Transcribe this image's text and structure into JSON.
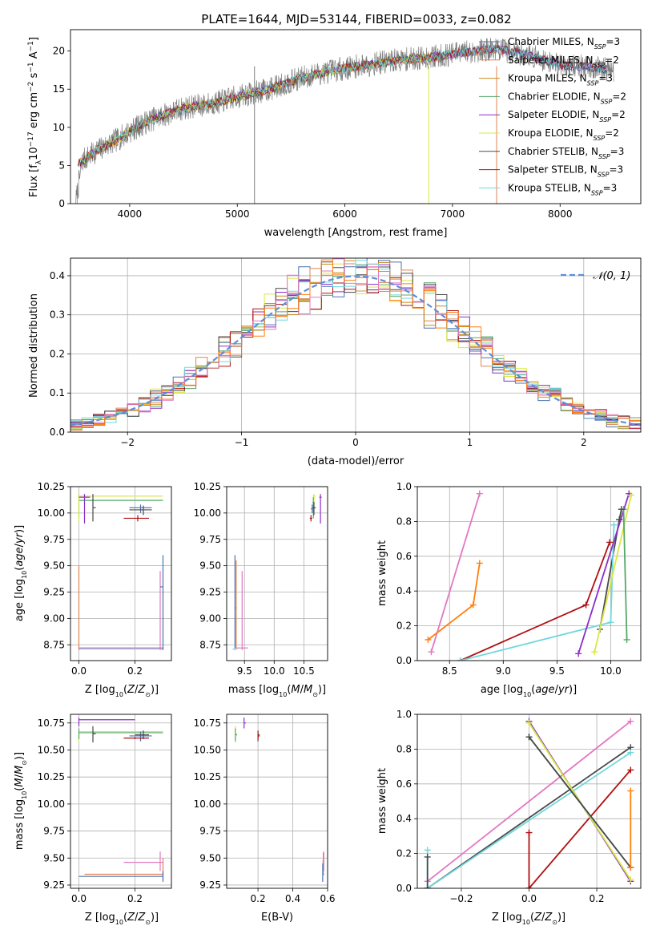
{
  "figure": {
    "title": "PLATE=1644, MJD=53144, FIBERID=0033, z=0.082"
  },
  "colors": {
    "Chabrier MILES": "#4c72b0",
    "Salpeter MILES": "#dd8452",
    "Kroupa MILES": "#c98a1a",
    "Chabrier ELODIE": "#55a868",
    "Salpeter ELODIE": "#8c2ec9",
    "Kroupa ELODIE": "#d8e840",
    "Chabrier STELIB": "#4a4a4a",
    "Salpeter STELIB": "#b01010",
    "Kroupa STELIB": "#6fd8de",
    "data": "#7f7f7f",
    "gauss": "#5b8fd9",
    "pinkB": "#e377c2",
    "orangeB": "#ff7f0e"
  },
  "legend": {
    "models": [
      "Chabrier MILES, N_SSP=3",
      "Salpeter MILES, N_SSP=2",
      "Kroupa MILES, N_SSP=3",
      "Chabrier ELODIE, N_SSP=2",
      "Salpeter ELODIE, N_SSP=2",
      "Kroupa ELODIE, N_SSP=2",
      "Chabrier STELIB, N_SSP=3",
      "Salpeter STELIB, N_SSP=3",
      "Kroupa STELIB, N_SSP=3"
    ],
    "gauss": "𝒩(0, 1)"
  },
  "chart_data": [
    {
      "id": "spectrum",
      "type": "line",
      "xlabel": "wavelength [Angstrom, rest frame]",
      "ylabel": "Flux [f_λ 10^-17 erg cm^-2 s^-1 A^-1]",
      "xlim": [
        3450,
        8750
      ],
      "ylim": [
        0,
        22.8
      ],
      "xticks": [
        4000,
        5000,
        6000,
        7000,
        8000
      ],
      "yticks": [
        0,
        5,
        10,
        15,
        20
      ],
      "grid": false,
      "legend_position": "top-right",
      "continuum": [
        [
          3500,
          5
        ],
        [
          3700,
          7
        ],
        [
          3900,
          8.5
        ],
        [
          4000,
          9.5
        ],
        [
          4200,
          11
        ],
        [
          4500,
          12.5
        ],
        [
          4800,
          13.2
        ],
        [
          5000,
          14
        ],
        [
          5300,
          15
        ],
        [
          5600,
          16.5
        ],
        [
          5900,
          17.5
        ],
        [
          6200,
          18.2
        ],
        [
          6500,
          18.8
        ],
        [
          6800,
          19.2
        ],
        [
          7100,
          19.8
        ],
        [
          7400,
          20.3
        ],
        [
          7700,
          19.5
        ],
        [
          8000,
          18.2
        ],
        [
          8300,
          17.8
        ],
        [
          8500,
          17.5
        ]
      ]
    },
    {
      "id": "residuals",
      "type": "histogram",
      "xlabel": "(data-model)/error",
      "ylabel": "Normed distribution",
      "xlim": [
        -2.5,
        2.5
      ],
      "ylim": [
        0,
        0.445
      ],
      "xticks": [
        -2,
        -1,
        0,
        1,
        2
      ],
      "yticks": [
        0.0,
        0.1,
        0.2,
        0.3,
        0.4
      ],
      "grid": true,
      "legend_position": "top-right",
      "bin_width": 0.1,
      "gaussian": {
        "mean": 0,
        "sigma": 1
      }
    },
    {
      "id": "age_vs_Z",
      "type": "scatter",
      "xlabel": "Z [log10(Z/Z⊙)]",
      "ylabel": "age [log10(age/yr)]",
      "xlim": [
        -0.03,
        0.33
      ],
      "ylim": [
        8.6,
        10.25
      ],
      "xticks": [
        0.0,
        0.2
      ],
      "yticks": [
        8.75,
        9.0,
        9.25,
        9.5,
        9.75,
        10.0,
        10.25
      ],
      "grid": true
    },
    {
      "id": "age_vs_mass",
      "type": "scatter",
      "xlabel": "mass [log10(M/M⊙)]",
      "xlim": [
        9.2,
        10.9
      ],
      "ylim": [
        8.6,
        10.25
      ],
      "xticks": [
        9.5,
        10.0,
        10.5
      ],
      "yticks": [
        8.75,
        9.0,
        9.25,
        9.5,
        9.75,
        10.0,
        10.25
      ],
      "grid": true
    },
    {
      "id": "weight_vs_age",
      "type": "line",
      "xlabel": "age [log10(age/yr)]",
      "ylabel": "mass weight",
      "xlim": [
        8.2,
        10.28
      ],
      "ylim": [
        0,
        1.0
      ],
      "xticks": [
        8.5,
        9.0,
        9.5,
        10.0
      ],
      "yticks": [
        0.0,
        0.2,
        0.4,
        0.6,
        0.8,
        1.0
      ],
      "grid": true
    },
    {
      "id": "mass_vs_Z",
      "type": "scatter",
      "xlabel": "Z [log10(Z/Z⊙)]",
      "ylabel": "mass [log10(M/M⊙)]",
      "xlim": [
        -0.03,
        0.33
      ],
      "ylim": [
        9.22,
        10.83
      ],
      "xticks": [
        0.0,
        0.2
      ],
      "yticks": [
        9.25,
        9.5,
        9.75,
        10.0,
        10.25,
        10.5,
        10.75
      ],
      "grid": true
    },
    {
      "id": "mass_vs_EBV",
      "type": "scatter",
      "xlabel": "E(B-V)",
      "xlim": [
        0.02,
        0.6
      ],
      "ylim": [
        9.22,
        10.83
      ],
      "xticks": [
        0.2,
        0.4,
        0.6
      ],
      "yticks": [
        9.25,
        9.5,
        9.75,
        10.0,
        10.25,
        10.5,
        10.75
      ],
      "grid": true
    },
    {
      "id": "weight_vs_Z",
      "type": "line",
      "xlabel": "Z [log10(Z/Z⊙)]",
      "ylabel": "mass weight",
      "xlim": [
        -0.33,
        0.33
      ],
      "ylim": [
        0,
        1.0
      ],
      "xticks": [
        -0.2,
        0.0,
        0.2
      ],
      "yticks": [
        0.0,
        0.2,
        0.4,
        0.6,
        0.8,
        1.0
      ],
      "grid": true
    }
  ],
  "scatter_points": {
    "age_vs_Z": [
      {
        "c": "Chabrier ELODIE",
        "x": 0.0,
        "y": 10.12,
        "x0": 0.0,
        "x1": 0.3,
        "y0": 9.95,
        "y1": 10.18
      },
      {
        "c": "Kroupa ELODIE",
        "x": 0.0,
        "y": 10.16,
        "x0": 0.0,
        "x1": 0.3,
        "y0": 9.92,
        "y1": 10.18
      },
      {
        "c": "Salpeter ELODIE",
        "x": 0.02,
        "y": 10.15,
        "x0": 0.0,
        "x1": 0.04,
        "y0": 9.9,
        "y1": 10.18
      },
      {
        "c": "Chabrier STELIB",
        "x": 0.05,
        "y": 10.05,
        "x0": 0.05,
        "x1": 0.06,
        "y0": 9.92,
        "y1": 10.18
      },
      {
        "c": "Chabrier MILES",
        "x": 0.22,
        "y": 10.05,
        "x0": 0.18,
        "x1": 0.26,
        "y0": 10.0,
        "y1": 10.08
      },
      {
        "c": "Chabrier STELIB",
        "x": 0.23,
        "y": 10.03,
        "x0": 0.18,
        "x1": 0.26,
        "y0": 9.98,
        "y1": 10.07
      },
      {
        "c": "Salpeter STELIB",
        "x": 0.21,
        "y": 9.95,
        "x0": 0.16,
        "x1": 0.25,
        "y0": 9.92,
        "y1": 9.98
      },
      {
        "c": "Kroupa STELIB",
        "x": 0.0,
        "y": 8.71,
        "x0": 0.0,
        "x1": 0.3,
        "y0": 8.7,
        "y1": 8.72
      },
      {
        "c": "Salpeter MILES",
        "x": 0.0,
        "y": 8.72,
        "x0": 0.0,
        "x1": 0.3,
        "y0": 8.7,
        "y1": 9.5
      },
      {
        "c": "pinkB",
        "x": 0.29,
        "y": 8.72,
        "x0": 0.0,
        "x1": 0.3,
        "y0": 8.7,
        "y1": 9.45
      },
      {
        "c": "Chabrier MILES",
        "x": 0.3,
        "y": 9.3,
        "x0": 0.29,
        "x1": 0.3,
        "y0": 8.7,
        "y1": 9.6
      }
    ],
    "age_vs_mass": [
      {
        "c": "Kroupa ELODIE",
        "x": 10.67,
        "y": 10.16,
        "x0": 10.65,
        "x1": 10.7,
        "y0": 10.0,
        "y1": 10.18
      },
      {
        "c": "Salpeter ELODIE",
        "x": 10.78,
        "y": 10.15,
        "x0": 10.76,
        "x1": 10.8,
        "y0": 9.9,
        "y1": 10.18
      },
      {
        "c": "Chabrier ELODIE",
        "x": 10.66,
        "y": 10.1,
        "x0": 10.64,
        "x1": 10.68,
        "y0": 9.95,
        "y1": 10.15
      },
      {
        "c": "Chabrier STELIB",
        "x": 10.67,
        "y": 10.05,
        "x0": 10.65,
        "x1": 10.7,
        "y0": 9.98,
        "y1": 10.1
      },
      {
        "c": "Chabrier MILES",
        "x": 10.64,
        "y": 10.04,
        "x0": 10.62,
        "x1": 10.66,
        "y0": 10.0,
        "y1": 10.08
      },
      {
        "c": "Salpeter STELIB",
        "x": 10.62,
        "y": 9.95,
        "x0": 10.6,
        "x1": 10.64,
        "y0": 9.92,
        "y1": 9.98
      },
      {
        "c": "Chabrier MILES",
        "x": 9.34,
        "y": 9.1,
        "x0": 9.33,
        "x1": 9.35,
        "y0": 8.7,
        "y1": 9.6
      },
      {
        "c": "Salpeter MILES",
        "x": 9.36,
        "y": 9.1,
        "x0": 9.35,
        "x1": 9.37,
        "y0": 8.72,
        "y1": 9.55
      },
      {
        "c": "pinkB",
        "x": 9.46,
        "y": 8.72,
        "x0": 9.36,
        "x1": 9.56,
        "y0": 8.7,
        "y1": 9.45
      },
      {
        "c": "Kroupa STELIB",
        "x": 9.34,
        "y": 8.71,
        "x0": 9.3,
        "x1": 9.38,
        "y0": 8.7,
        "y1": 8.72
      }
    ],
    "mass_vs_Z": [
      {
        "c": "Salpeter ELODIE",
        "x": 0.0,
        "y": 10.78,
        "x0": 0.0,
        "x1": 0.2,
        "y0": 10.72,
        "y1": 10.8
      },
      {
        "c": "Kroupa ELODIE",
        "x": 0.0,
        "y": 10.67,
        "x0": 0.0,
        "x1": 0.3,
        "y0": 10.57,
        "y1": 10.7
      },
      {
        "c": "Chabrier ELODIE",
        "x": 0.0,
        "y": 10.66,
        "x0": 0.0,
        "x1": 0.3,
        "y0": 10.6,
        "y1": 10.7
      },
      {
        "c": "Chabrier STELIB",
        "x": 0.05,
        "y": 10.65,
        "x0": 0.05,
        "x1": 0.06,
        "y0": 10.57,
        "y1": 10.72
      },
      {
        "c": "Chabrier MILES",
        "x": 0.22,
        "y": 10.63,
        "x0": 0.18,
        "x1": 0.26,
        "y0": 10.58,
        "y1": 10.67
      },
      {
        "c": "Chabrier STELIB",
        "x": 0.23,
        "y": 10.64,
        "x0": 0.2,
        "x1": 0.25,
        "y0": 10.6,
        "y1": 10.68
      },
      {
        "c": "Salpeter STELIB",
        "x": 0.2,
        "y": 10.61,
        "x0": 0.16,
        "x1": 0.25,
        "y0": 10.6,
        "y1": 10.62
      },
      {
        "c": "pinkB",
        "x": 0.29,
        "y": 9.46,
        "x0": 0.16,
        "x1": 0.3,
        "y0": 9.38,
        "y1": 9.56
      },
      {
        "c": "Salpeter MILES",
        "x": 0.3,
        "y": 9.35,
        "x0": 0.02,
        "x1": 0.3,
        "y0": 9.3,
        "y1": 9.5
      },
      {
        "c": "Chabrier MILES",
        "x": 0.3,
        "y": 9.33,
        "x0": 0.0,
        "x1": 0.3,
        "y0": 9.28,
        "y1": 9.38
      }
    ],
    "mass_vs_EBV": [
      {
        "c": "Kroupa ELODIE",
        "x": 0.07,
        "y": 10.65,
        "x0": 0.07,
        "x1": 0.08,
        "y0": 10.57,
        "y1": 10.72
      },
      {
        "c": "Salpeter ELODIE",
        "x": 0.12,
        "y": 10.75,
        "x0": 0.12,
        "x1": 0.13,
        "y0": 10.7,
        "y1": 10.8
      },
      {
        "c": "Chabrier ELODIE",
        "x": 0.07,
        "y": 10.64,
        "x0": 0.07,
        "x1": 0.08,
        "y0": 10.58,
        "y1": 10.7
      },
      {
        "c": "Chabrier STELIB",
        "x": 0.2,
        "y": 10.64,
        "x0": 0.2,
        "x1": 0.21,
        "y0": 10.58,
        "y1": 10.68
      },
      {
        "c": "Salpeter STELIB",
        "x": 0.2,
        "y": 10.63,
        "x0": 0.2,
        "x1": 0.21,
        "y0": 10.6,
        "y1": 10.67
      },
      {
        "c": "Salpeter MILES",
        "x": 0.575,
        "y": 9.45,
        "x0": 0.57,
        "x1": 0.58,
        "y0": 9.35,
        "y1": 9.55
      },
      {
        "c": "pinkB",
        "x": 0.578,
        "y": 9.47,
        "x0": 0.57,
        "x1": 0.58,
        "y0": 9.38,
        "y1": 9.56
      },
      {
        "c": "Chabrier MILES",
        "x": 0.572,
        "y": 9.35,
        "x0": 0.57,
        "x1": 0.58,
        "y0": 9.28,
        "y1": 9.45
      }
    ]
  },
  "weight_lines": {
    "age": [
      {
        "c": "pinkB",
        "pts": [
          [
            8.33,
            0.05
          ],
          [
            8.78,
            0.96
          ]
        ]
      },
      {
        "c": "orangeB",
        "pts": [
          [
            8.3,
            0.12
          ],
          [
            8.72,
            0.32
          ],
          [
            8.78,
            0.56
          ]
        ]
      },
      {
        "c": "Salpeter STELIB",
        "pts": [
          [
            8.6,
            0.0
          ],
          [
            9.77,
            0.32
          ],
          [
            9.99,
            0.68
          ]
        ]
      },
      {
        "c": "Chabrier STELIB",
        "pts": [
          [
            9.9,
            0.18
          ],
          [
            10.08,
            0.81
          ]
        ]
      },
      {
        "c": "Kroupa STELIB",
        "pts": [
          [
            8.6,
            0.0
          ],
          [
            10.0,
            0.22
          ],
          [
            10.03,
            0.78
          ]
        ]
      },
      {
        "c": "Salpeter ELODIE",
        "pts": [
          [
            9.7,
            0.04
          ],
          [
            10.17,
            0.96
          ]
        ]
      },
      {
        "c": "Kroupa ELODIE",
        "pts": [
          [
            9.85,
            0.05
          ],
          [
            10.19,
            0.95
          ]
        ]
      },
      {
        "c": "Chabrier ELODIE",
        "pts": [
          [
            10.12,
            0.87
          ],
          [
            10.15,
            0.12
          ]
        ]
      },
      {
        "c": "Chabrier STELIB",
        "pts": [
          [
            10.08,
            0.81
          ],
          [
            10.1,
            0.87
          ]
        ]
      }
    ],
    "Z": [
      {
        "c": "pinkB",
        "pts": [
          [
            -0.3,
            0.04
          ],
          [
            0.3,
            0.96
          ]
        ]
      },
      {
        "c": "Chabrier STELIB",
        "pts": [
          [
            -0.3,
            0.0
          ],
          [
            0.3,
            0.81
          ]
        ]
      },
      {
        "c": "Kroupa STELIB",
        "pts": [
          [
            -0.3,
            0.0
          ],
          [
            0.3,
            0.78
          ]
        ]
      },
      {
        "c": "Salpeter STELIB",
        "pts": [
          [
            0.0,
            0.0
          ],
          [
            0.3,
            0.68
          ]
        ]
      },
      {
        "c": "Salpeter STELIB",
        "pts": [
          [
            0.0,
            0.0
          ],
          [
            0.0,
            0.32
          ]
        ]
      },
      {
        "c": "Salpeter ELODIE",
        "pts": [
          [
            0.0,
            0.96
          ],
          [
            0.3,
            0.04
          ]
        ]
      },
      {
        "c": "Kroupa ELODIE",
        "pts": [
          [
            0.0,
            0.95
          ],
          [
            0.3,
            0.05
          ]
        ]
      },
      {
        "c": "Chabrier ELODIE",
        "pts": [
          [
            0.0,
            0.87
          ],
          [
            0.3,
            0.12
          ]
        ]
      },
      {
        "c": "Chabrier STELIB",
        "pts": [
          [
            0.0,
            0.87
          ],
          [
            0.3,
            0.12
          ]
        ]
      },
      {
        "c": "orangeB",
        "pts": [
          [
            0.3,
            0.12
          ],
          [
            0.3,
            0.56
          ]
        ]
      },
      {
        "c": "Kroupa STELIB",
        "pts": [
          [
            -0.3,
            0.0
          ],
          [
            -0.3,
            0.22
          ]
        ]
      },
      {
        "c": "Chabrier STELIB",
        "pts": [
          [
            -0.3,
            0.0
          ],
          [
            -0.3,
            0.18
          ]
        ]
      }
    ]
  }
}
